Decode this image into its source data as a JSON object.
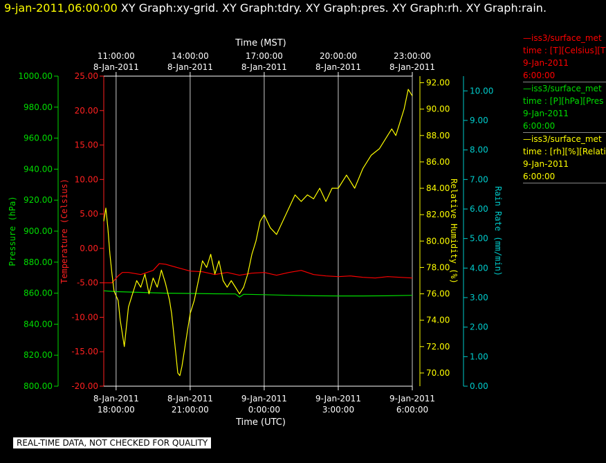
{
  "header": {
    "date_time": "9-jan-2011,06:00:00",
    "graph_titles": "XY Graph:xy-grid.  XY Graph:tdry.  XY Graph:pres.  XY Graph:rh.  XY Graph:rain."
  },
  "legend": [
    {
      "line1": "iss3/surface_met",
      "line2": "time : [T][Celsius][T",
      "line3": "9-Jan-2011",
      "line4": "6:00:00",
      "color": "#ff0000"
    },
    {
      "line1": "iss3/surface_met",
      "line2": "time : [P][hPa][Pres",
      "line3": "9-Jan-2011",
      "line4": "6:00:00",
      "color": "#00dd00"
    },
    {
      "line1": "iss3/surface_met",
      "line2": "time : [rh][%][Relati",
      "line3": "9-Jan-2011",
      "line4": "6:00:00",
      "color": "#ffff00"
    }
  ],
  "quality_note": "REAL-TIME DATA, NOT CHECKED FOR QUALITY",
  "chart_data": {
    "type": "line",
    "top_axis_title": "Time (MST)",
    "bottom_axis_title": "Time (UTC)",
    "x_range_utc": [
      "2011-01-08 17:30",
      "2011-01-09 06:00"
    ],
    "bottom_ticks": [
      {
        "time": "2011-01-08 18:00",
        "date": "8-Jan-2011",
        "clock": "18:00:00"
      },
      {
        "time": "2011-01-08 21:00",
        "date": "8-Jan-2011",
        "clock": "21:00:00"
      },
      {
        "time": "2011-01-09 00:00",
        "date": "9-Jan-2011",
        "clock": "0:00:00"
      },
      {
        "time": "2011-01-09 03:00",
        "date": "9-Jan-2011",
        "clock": "3:00:00"
      },
      {
        "time": "2011-01-09 06:00",
        "date": "9-Jan-2011",
        "clock": "6:00:00"
      }
    ],
    "top_ticks": [
      {
        "time": "2011-01-08 18:00",
        "clock": "11:00:00",
        "date": "8-Jan-2011"
      },
      {
        "time": "2011-01-08 21:00",
        "clock": "14:00:00",
        "date": "8-Jan-2011"
      },
      {
        "time": "2011-01-09 00:00",
        "clock": "17:00:00",
        "date": "8-Jan-2011"
      },
      {
        "time": "2011-01-09 03:00",
        "clock": "20:00:00",
        "date": "8-Jan-2011"
      },
      {
        "time": "2011-01-09 06:00",
        "clock": "23:00:00",
        "date": "8-Jan-2011"
      }
    ],
    "grid": true,
    "axes": {
      "pressure": {
        "label": "Pressure (hPa)",
        "min": 800,
        "max": 1000,
        "step": 20,
        "decimals": 2,
        "color": "#00dd00",
        "side": "left"
      },
      "temperature": {
        "label": "Temperature (Celsius)",
        "min": -20,
        "max": 25,
        "step": 5,
        "decimals": 2,
        "color": "#ff2020",
        "side": "left"
      },
      "humidity": {
        "label": "Relative Humidity (%)",
        "min": 69,
        "max": 92.5,
        "step": 2,
        "first": 70,
        "decimals": 2,
        "color": "#ffff00",
        "side": "right"
      },
      "rain": {
        "label": "Rain Rate (mm/min)",
        "min": 0,
        "max": 10.5,
        "step": 1,
        "decimals": 2,
        "color": "#00cccc",
        "side": "right"
      }
    },
    "series": [
      {
        "axis": "temperature",
        "color": "#ff0000",
        "points": [
          [
            "2011-01-08 17:30",
            -5.0
          ],
          [
            "2011-01-08 17:50",
            -5.0
          ],
          [
            "2011-01-08 18:05",
            -4.0
          ],
          [
            "2011-01-08 18:15",
            -3.5
          ],
          [
            "2011-01-08 18:30",
            -3.5
          ],
          [
            "2011-01-08 19:00",
            -3.8
          ],
          [
            "2011-01-08 19:30",
            -3.2
          ],
          [
            "2011-01-08 19:45",
            -2.2
          ],
          [
            "2011-01-08 20:00",
            -2.3
          ],
          [
            "2011-01-08 20:30",
            -2.8
          ],
          [
            "2011-01-08 21:00",
            -3.3
          ],
          [
            "2011-01-08 21:30",
            -3.4
          ],
          [
            "2011-01-08 22:00",
            -3.8
          ],
          [
            "2011-01-08 22:30",
            -3.5
          ],
          [
            "2011-01-08 23:00",
            -3.9
          ],
          [
            "2011-01-08 23:30",
            -3.6
          ],
          [
            "2011-01-09 00:00",
            -3.5
          ],
          [
            "2011-01-09 00:30",
            -3.9
          ],
          [
            "2011-01-09 01:00",
            -3.5
          ],
          [
            "2011-01-09 01:30",
            -3.2
          ],
          [
            "2011-01-09 02:00",
            -3.8
          ],
          [
            "2011-01-09 02:30",
            -4.0
          ],
          [
            "2011-01-09 03:00",
            -4.1
          ],
          [
            "2011-01-09 03:30",
            -4.0
          ],
          [
            "2011-01-09 04:00",
            -4.2
          ],
          [
            "2011-01-09 04:30",
            -4.3
          ],
          [
            "2011-01-09 05:00",
            -4.1
          ],
          [
            "2011-01-09 05:30",
            -4.2
          ],
          [
            "2011-01-09 06:00",
            -4.3
          ]
        ]
      },
      {
        "axis": "pressure",
        "color": "#00dd00",
        "points": [
          [
            "2011-01-08 17:30",
            861.5
          ],
          [
            "2011-01-08 18:00",
            861.0
          ],
          [
            "2011-01-08 19:00",
            860.5
          ],
          [
            "2011-01-08 20:00",
            860.0
          ],
          [
            "2011-01-08 21:00",
            859.8
          ],
          [
            "2011-01-08 22:00",
            859.6
          ],
          [
            "2011-01-08 22:50",
            859.5
          ],
          [
            "2011-01-08 23:00",
            857.5
          ],
          [
            "2011-01-08 23:10",
            859.3
          ],
          [
            "2011-01-09 00:00",
            859.0
          ],
          [
            "2011-01-09 01:00",
            858.6
          ],
          [
            "2011-01-09 02:00",
            858.3
          ],
          [
            "2011-01-09 03:00",
            858.2
          ],
          [
            "2011-01-09 04:00",
            858.2
          ],
          [
            "2011-01-09 05:00",
            858.3
          ],
          [
            "2011-01-09 06:00",
            858.6
          ]
        ]
      },
      {
        "axis": "humidity",
        "color": "#ffff00",
        "points": [
          [
            "2011-01-08 17:30",
            81.5
          ],
          [
            "2011-01-08 17:35",
            82.5
          ],
          [
            "2011-01-08 17:40",
            81.0
          ],
          [
            "2011-01-08 17:45",
            79.0
          ],
          [
            "2011-01-08 17:50",
            77.5
          ],
          [
            "2011-01-08 17:55",
            76.2
          ],
          [
            "2011-01-08 18:05",
            75.5
          ],
          [
            "2011-01-08 18:10",
            74.0
          ],
          [
            "2011-01-08 18:15",
            73.0
          ],
          [
            "2011-01-08 18:20",
            72.0
          ],
          [
            "2011-01-08 18:25",
            73.5
          ],
          [
            "2011-01-08 18:30",
            75.0
          ],
          [
            "2011-01-08 18:40",
            76.0
          ],
          [
            "2011-01-08 18:50",
            77.0
          ],
          [
            "2011-01-08 19:00",
            76.5
          ],
          [
            "2011-01-08 19:10",
            77.5
          ],
          [
            "2011-01-08 19:20",
            76.0
          ],
          [
            "2011-01-08 19:30",
            77.2
          ],
          [
            "2011-01-08 19:40",
            76.5
          ],
          [
            "2011-01-08 19:50",
            77.8
          ],
          [
            "2011-01-08 20:00",
            76.8
          ],
          [
            "2011-01-08 20:10",
            75.5
          ],
          [
            "2011-01-08 20:15",
            74.5
          ],
          [
            "2011-01-08 20:20",
            73.0
          ],
          [
            "2011-01-08 20:25",
            71.5
          ],
          [
            "2011-01-08 20:30",
            70.0
          ],
          [
            "2011-01-08 20:35",
            69.8
          ],
          [
            "2011-01-08 20:40",
            70.5
          ],
          [
            "2011-01-08 20:50",
            72.5
          ],
          [
            "2011-01-08 21:00",
            74.5
          ],
          [
            "2011-01-08 21:10",
            75.5
          ],
          [
            "2011-01-08 21:20",
            77.0
          ],
          [
            "2011-01-08 21:30",
            78.5
          ],
          [
            "2011-01-08 21:40",
            78.0
          ],
          [
            "2011-01-08 21:50",
            79.0
          ],
          [
            "2011-01-08 22:00",
            77.5
          ],
          [
            "2011-01-08 22:10",
            78.5
          ],
          [
            "2011-01-08 22:20",
            77.0
          ],
          [
            "2011-01-08 22:30",
            76.5
          ],
          [
            "2011-01-08 22:40",
            77.0
          ],
          [
            "2011-01-08 22:50",
            76.5
          ],
          [
            "2011-01-08 23:00",
            76.0
          ],
          [
            "2011-01-08 23:10",
            76.5
          ],
          [
            "2011-01-08 23:20",
            77.5
          ],
          [
            "2011-01-08 23:30",
            79.0
          ],
          [
            "2011-01-08 23:40",
            80.0
          ],
          [
            "2011-01-08 23:50",
            81.5
          ],
          [
            "2011-01-09 00:00",
            82.0
          ],
          [
            "2011-01-09 00:15",
            81.0
          ],
          [
            "2011-01-09 00:30",
            80.5
          ],
          [
            "2011-01-09 00:45",
            81.5
          ],
          [
            "2011-01-09 01:00",
            82.5
          ],
          [
            "2011-01-09 01:15",
            83.5
          ],
          [
            "2011-01-09 01:30",
            83.0
          ],
          [
            "2011-01-09 01:45",
            83.5
          ],
          [
            "2011-01-09 02:00",
            83.2
          ],
          [
            "2011-01-09 02:15",
            84.0
          ],
          [
            "2011-01-09 02:30",
            83.0
          ],
          [
            "2011-01-09 02:45",
            84.0
          ],
          [
            "2011-01-09 03:00",
            84.0
          ],
          [
            "2011-01-09 03:20",
            85.0
          ],
          [
            "2011-01-09 03:40",
            84.0
          ],
          [
            "2011-01-09 04:00",
            85.5
          ],
          [
            "2011-01-09 04:20",
            86.5
          ],
          [
            "2011-01-09 04:40",
            87.0
          ],
          [
            "2011-01-09 05:00",
            88.0
          ],
          [
            "2011-01-09 05:10",
            88.5
          ],
          [
            "2011-01-09 05:20",
            88.0
          ],
          [
            "2011-01-09 05:30",
            89.0
          ],
          [
            "2011-01-09 05:40",
            90.0
          ],
          [
            "2011-01-09 05:50",
            91.5
          ],
          [
            "2011-01-09 06:00",
            91.0
          ]
        ]
      }
    ]
  }
}
